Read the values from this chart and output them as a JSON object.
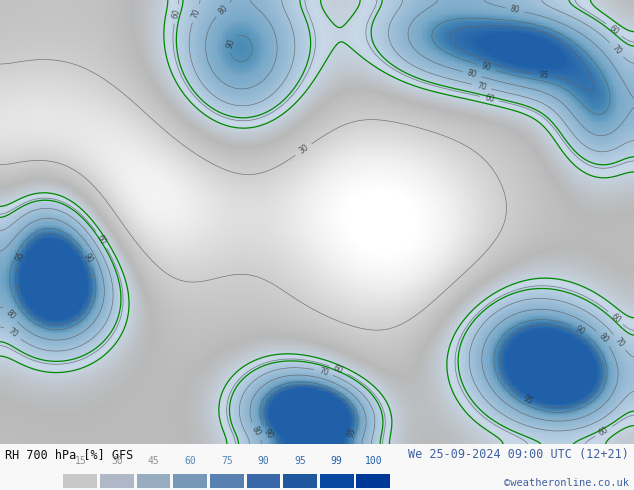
{
  "title_left": "RH 700 hPa [%] GFS",
  "title_right": "We 25-09-2024 09:00 UTC (12+21)",
  "credit": "©weatheronline.co.uk",
  "legend_values": [
    "15",
    "30",
    "45",
    "60",
    "75",
    "90",
    "95",
    "99",
    "100"
  ],
  "legend_colors": [
    "#c8c8c8",
    "#b0b8c8",
    "#98aec0",
    "#7898b8",
    "#5880b0",
    "#3868a8",
    "#2058a0",
    "#0848a0",
    "#003898"
  ],
  "legend_text_colors": [
    "#909090",
    "#909090",
    "#909090",
    "#5888b8",
    "#5888b8",
    "#3870b0",
    "#3870b0",
    "#2060a8",
    "#2060a8"
  ],
  "fig_width": 6.34,
  "fig_height": 4.9,
  "dpi": 100,
  "bottom_bg": "#f8f8f8",
  "title_left_color": "#101010",
  "title_right_color": "#4060a0",
  "credit_color": "#4060a0",
  "map_colors": {
    "white_area": "#ffffff",
    "light_gray": "#d8d8d8",
    "medium_gray": "#b8b8b8",
    "dark_gray": "#989898",
    "light_blue": "#c8d8e8",
    "medium_blue": "#a0c0d8",
    "blue": "#78a8c8",
    "dark_blue": "#5090b8",
    "green_line": "#00aa00",
    "green_fill_light": "#c8e8c0"
  }
}
